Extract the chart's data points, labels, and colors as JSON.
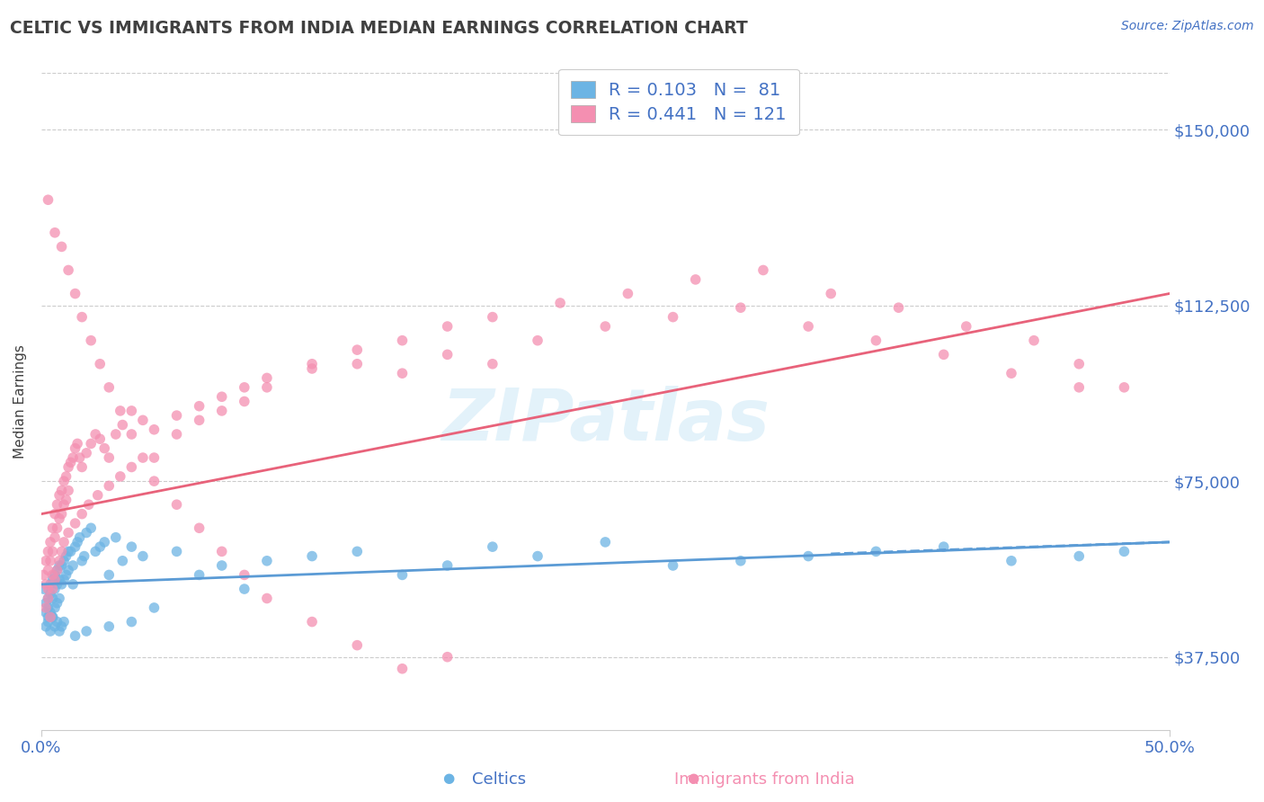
{
  "title": "CELTIC VS IMMIGRANTS FROM INDIA MEDIAN EARNINGS CORRELATION CHART",
  "source_text": "Source: ZipAtlas.com",
  "ylabel": "Median Earnings",
  "y_tick_labels": [
    "$37,500",
    "$75,000",
    "$112,500",
    "$150,000"
  ],
  "y_tick_values": [
    37500,
    75000,
    112500,
    150000
  ],
  "ylim": [
    22000,
    162000
  ],
  "xlim": [
    0.0,
    0.5
  ],
  "watermark": "ZIPatlas",
  "blue_color": "#6cb4e4",
  "pink_color": "#f48fb1",
  "blue_line_color": "#5b9bd5",
  "pink_line_color": "#e8627a",
  "title_color": "#404040",
  "axis_label_color": "#4472c4",
  "background_color": "#ffffff",
  "grid_color": "#cccccc",
  "celtics_scatter_x": [
    0.001,
    0.002,
    0.002,
    0.003,
    0.003,
    0.003,
    0.004,
    0.004,
    0.004,
    0.005,
    0.005,
    0.005,
    0.006,
    0.006,
    0.006,
    0.007,
    0.007,
    0.007,
    0.008,
    0.008,
    0.008,
    0.009,
    0.009,
    0.01,
    0.01,
    0.011,
    0.011,
    0.012,
    0.012,
    0.013,
    0.014,
    0.014,
    0.015,
    0.016,
    0.017,
    0.018,
    0.019,
    0.02,
    0.022,
    0.024,
    0.026,
    0.028,
    0.03,
    0.033,
    0.036,
    0.04,
    0.045,
    0.05,
    0.06,
    0.07,
    0.08,
    0.09,
    0.1,
    0.12,
    0.14,
    0.16,
    0.18,
    0.2,
    0.22,
    0.25,
    0.28,
    0.31,
    0.34,
    0.37,
    0.4,
    0.43,
    0.46,
    0.48,
    0.002,
    0.003,
    0.004,
    0.005,
    0.006,
    0.007,
    0.008,
    0.009,
    0.01,
    0.015,
    0.02,
    0.03,
    0.04
  ],
  "celtics_scatter_y": [
    52000,
    49000,
    47000,
    50000,
    48000,
    46000,
    53000,
    51000,
    47000,
    54000,
    50000,
    46000,
    55000,
    52000,
    48000,
    56000,
    53000,
    49000,
    57000,
    54000,
    50000,
    57000,
    53000,
    58000,
    54000,
    59000,
    55000,
    60000,
    56000,
    60000,
    57000,
    53000,
    61000,
    62000,
    63000,
    58000,
    59000,
    64000,
    65000,
    60000,
    61000,
    62000,
    55000,
    63000,
    58000,
    61000,
    59000,
    48000,
    60000,
    55000,
    57000,
    52000,
    58000,
    59000,
    60000,
    55000,
    57000,
    61000,
    59000,
    62000,
    57000,
    58000,
    59000,
    60000,
    61000,
    58000,
    59000,
    60000,
    44000,
    45000,
    43000,
    46000,
    44000,
    45000,
    43000,
    44000,
    45000,
    42000,
    43000,
    44000,
    45000
  ],
  "india_scatter_x": [
    0.001,
    0.002,
    0.002,
    0.003,
    0.003,
    0.003,
    0.004,
    0.004,
    0.005,
    0.005,
    0.005,
    0.006,
    0.006,
    0.007,
    0.007,
    0.008,
    0.008,
    0.009,
    0.009,
    0.01,
    0.01,
    0.011,
    0.011,
    0.012,
    0.012,
    0.013,
    0.014,
    0.015,
    0.016,
    0.017,
    0.018,
    0.02,
    0.022,
    0.024,
    0.026,
    0.028,
    0.03,
    0.033,
    0.036,
    0.04,
    0.045,
    0.05,
    0.06,
    0.07,
    0.08,
    0.09,
    0.1,
    0.12,
    0.14,
    0.16,
    0.18,
    0.2,
    0.22,
    0.25,
    0.28,
    0.31,
    0.34,
    0.37,
    0.4,
    0.43,
    0.46,
    0.002,
    0.003,
    0.004,
    0.005,
    0.006,
    0.007,
    0.008,
    0.009,
    0.01,
    0.012,
    0.015,
    0.018,
    0.021,
    0.025,
    0.03,
    0.035,
    0.04,
    0.05,
    0.06,
    0.07,
    0.08,
    0.09,
    0.1,
    0.12,
    0.14,
    0.16,
    0.18,
    0.2,
    0.23,
    0.26,
    0.29,
    0.32,
    0.35,
    0.38,
    0.41,
    0.44,
    0.46,
    0.48,
    0.003,
    0.006,
    0.009,
    0.012,
    0.015,
    0.018,
    0.022,
    0.026,
    0.03,
    0.035,
    0.04,
    0.045,
    0.05,
    0.06,
    0.07,
    0.08,
    0.09,
    0.1,
    0.12,
    0.14,
    0.16,
    0.18
  ],
  "india_scatter_y": [
    55000,
    58000,
    53000,
    60000,
    56000,
    52000,
    62000,
    58000,
    65000,
    60000,
    55000,
    68000,
    63000,
    70000,
    65000,
    72000,
    67000,
    73000,
    68000,
    75000,
    70000,
    76000,
    71000,
    78000,
    73000,
    79000,
    80000,
    82000,
    83000,
    80000,
    78000,
    81000,
    83000,
    85000,
    84000,
    82000,
    80000,
    85000,
    87000,
    90000,
    88000,
    86000,
    89000,
    91000,
    93000,
    95000,
    97000,
    99000,
    100000,
    98000,
    102000,
    100000,
    105000,
    108000,
    110000,
    112000,
    108000,
    105000,
    102000,
    98000,
    95000,
    48000,
    50000,
    46000,
    52000,
    54000,
    56000,
    58000,
    60000,
    62000,
    64000,
    66000,
    68000,
    70000,
    72000,
    74000,
    76000,
    78000,
    80000,
    85000,
    88000,
    90000,
    92000,
    95000,
    100000,
    103000,
    105000,
    108000,
    110000,
    113000,
    115000,
    118000,
    120000,
    115000,
    112000,
    108000,
    105000,
    100000,
    95000,
    135000,
    128000,
    125000,
    120000,
    115000,
    110000,
    105000,
    100000,
    95000,
    90000,
    85000,
    80000,
    75000,
    70000,
    65000,
    60000,
    55000,
    50000,
    45000,
    40000,
    35000,
    37500
  ],
  "celtics_trend_x": [
    0.0,
    0.5
  ],
  "celtics_trend_y": [
    53000,
    62000
  ],
  "india_trend_x": [
    0.0,
    0.5
  ],
  "india_trend_y": [
    68000,
    115000
  ]
}
